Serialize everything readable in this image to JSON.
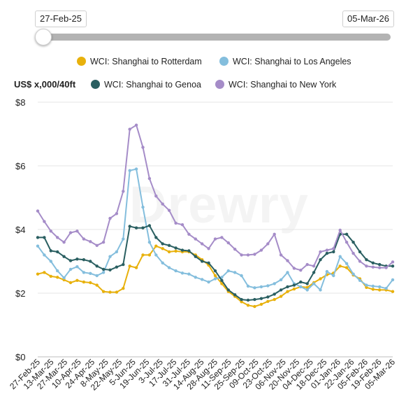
{
  "range": {
    "start_label": "27-Feb-25",
    "end_label": "05-Mar-26",
    "handle_position": 0
  },
  "legend": [
    {
      "label": "WCI: Shanghai to Rotterdam",
      "color": "#e8b10c"
    },
    {
      "label": "WCI: Shanghai to Los Angeles",
      "color": "#84bedd"
    },
    {
      "label": "WCI: Shanghai to Genoa",
      "color": "#2a5f61"
    },
    {
      "label": "WCI: Shanghai to New York",
      "color": "#a58cc8"
    }
  ],
  "watermark": "Drewry",
  "chart_data": {
    "type": "line",
    "ylabel": "US$ x,000/40ft",
    "ylim": [
      0,
      8
    ],
    "yticks": [
      0,
      2,
      4,
      6,
      8
    ],
    "ytick_labels": [
      "$0",
      "$2",
      "$4",
      "$6",
      "$8"
    ],
    "grid": true,
    "legend_position": "top",
    "xtick_labels": [
      "27-Feb-25",
      "13-Mar-25",
      "27-Mar-25",
      "10-Apr-25",
      "24-Apr-25",
      "8-May-25",
      "22-May-25",
      "5-Jun-25",
      "19-Jun-25",
      "3-Jul-25",
      "17-Jul-25",
      "31-Jul-25",
      "14-Aug-25",
      "28-Aug-25",
      "11-Sep-25",
      "25-Sep-25",
      "09-Oct-25",
      "23-Oct-25",
      "06-Nov-25",
      "20-Nov-25",
      "04-Dec-25",
      "18-Dec-25",
      "01-Jan-26",
      "22-Jan-26",
      "05-Feb-26",
      "19-Feb-26",
      "05-Mar-26"
    ],
    "series": [
      {
        "name": "WCI: Shanghai to Rotterdam",
        "color": "#e8b10c",
        "values": [
          2.6,
          2.65,
          2.53,
          2.5,
          2.42,
          2.33,
          2.4,
          2.35,
          2.33,
          2.25,
          2.05,
          2.03,
          2.03,
          2.15,
          2.85,
          2.8,
          3.2,
          3.2,
          3.48,
          3.4,
          3.3,
          3.32,
          3.3,
          3.3,
          3.2,
          3.05,
          2.88,
          2.55,
          2.3,
          2.05,
          1.9,
          1.73,
          1.62,
          1.58,
          1.65,
          1.74,
          1.8,
          1.9,
          2.05,
          2.13,
          2.2,
          2.18,
          2.33,
          2.45,
          2.58,
          2.63,
          2.85,
          2.8,
          2.57,
          2.45,
          2.18,
          2.12,
          2.1,
          2.1,
          2.05
        ]
      },
      {
        "name": "WCI: Shanghai to Los Angeles",
        "color": "#84bedd",
        "values": [
          3.48,
          3.2,
          3.0,
          2.7,
          2.48,
          2.75,
          2.83,
          2.65,
          2.62,
          2.55,
          2.65,
          3.15,
          3.3,
          3.7,
          5.85,
          5.9,
          4.7,
          3.6,
          3.2,
          2.95,
          2.8,
          2.7,
          2.63,
          2.6,
          2.5,
          2.43,
          2.35,
          2.45,
          2.5,
          2.7,
          2.65,
          2.55,
          2.22,
          2.17,
          2.2,
          2.23,
          2.3,
          2.42,
          2.65,
          2.3,
          2.2,
          2.1,
          2.3,
          2.1,
          2.68,
          2.55,
          3.15,
          2.93,
          2.6,
          2.4,
          2.25,
          2.22,
          2.2,
          2.15,
          2.42
        ]
      },
      {
        "name": "WCI: Shanghai to Genoa",
        "color": "#2a5f61",
        "values": [
          3.75,
          3.75,
          3.33,
          3.3,
          3.15,
          3.02,
          3.07,
          3.05,
          3.0,
          2.85,
          2.75,
          2.73,
          2.82,
          2.9,
          4.1,
          4.05,
          4.05,
          4.12,
          3.75,
          3.55,
          3.5,
          3.42,
          3.35,
          3.33,
          3.15,
          3.0,
          2.95,
          2.7,
          2.4,
          2.1,
          1.95,
          1.8,
          1.78,
          1.8,
          1.83,
          1.88,
          1.97,
          2.1,
          2.2,
          2.25,
          2.35,
          2.3,
          2.65,
          3.05,
          3.25,
          3.3,
          3.85,
          3.85,
          3.6,
          3.3,
          3.05,
          2.95,
          2.9,
          2.85,
          2.85
        ]
      },
      {
        "name": "WCI: Shanghai to New York",
        "color": "#a58cc8",
        "values": [
          4.58,
          4.25,
          3.95,
          3.75,
          3.6,
          3.9,
          3.95,
          3.7,
          3.62,
          3.5,
          3.6,
          4.35,
          4.5,
          5.2,
          7.15,
          7.28,
          6.58,
          5.6,
          5.05,
          4.8,
          4.6,
          4.2,
          4.15,
          3.85,
          3.7,
          3.55,
          3.4,
          3.7,
          3.75,
          3.58,
          3.38,
          3.2,
          3.2,
          3.22,
          3.35,
          3.55,
          3.85,
          3.2,
          3.02,
          2.78,
          2.72,
          2.9,
          2.85,
          3.3,
          3.35,
          3.4,
          3.98,
          3.6,
          3.25,
          3.0,
          2.85,
          2.82,
          2.8,
          2.8,
          2.98
        ]
      }
    ]
  }
}
